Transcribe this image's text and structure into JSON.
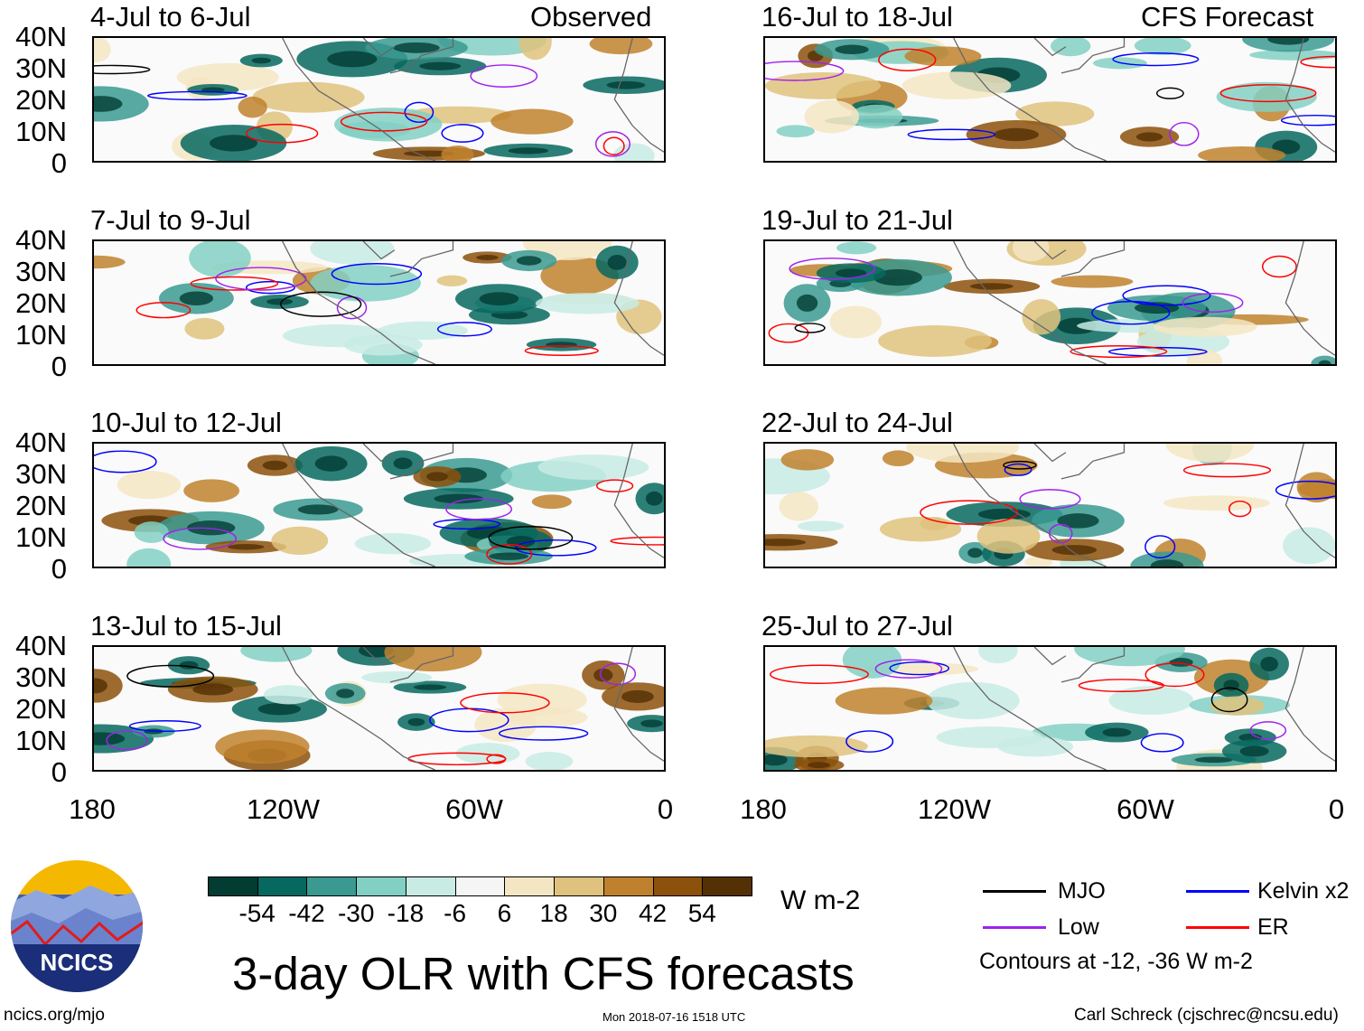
{
  "panels_left": [
    {
      "title": "4-Jul to 6-Jul",
      "subtitle": "Observed"
    },
    {
      "title": "7-Jul to 9-Jul"
    },
    {
      "title": "10-Jul to 12-Jul"
    },
    {
      "title": "13-Jul to 15-Jul"
    }
  ],
  "panels_right": [
    {
      "title": "16-Jul to 18-Jul",
      "subtitle": "CFS Forecast"
    },
    {
      "title": "19-Jul to 21-Jul"
    },
    {
      "title": "22-Jul to 24-Jul"
    },
    {
      "title": "25-Jul to 27-Jul"
    }
  ],
  "lat_labels": [
    "40N",
    "30N",
    "20N",
    "10N",
    "0"
  ],
  "lon_labels": [
    "180",
    "120W",
    "60W",
    "0"
  ],
  "colorbar": {
    "labels": [
      "-54",
      "-42",
      "-30",
      "-18",
      "-6",
      "6",
      "18",
      "30",
      "42",
      "54"
    ],
    "colors": [
      "#023c33",
      "#07685f",
      "#3a9a91",
      "#82d0c3",
      "#c8ebe4",
      "#f5f5f5",
      "#f5e6c3",
      "#dfc27d",
      "#bf812d",
      "#8c510a",
      "#543005"
    ],
    "units": "W m-2"
  },
  "title": "3-day OLR with CFS forecasts",
  "timestamp": "Mon 2018-07-16 1518 UTC",
  "legend": {
    "items": [
      {
        "label": "MJO",
        "color": "#000000"
      },
      {
        "label": "Kelvin x2",
        "color": "#0000ff"
      },
      {
        "label": "Low",
        "color": "#a020f0"
      },
      {
        "label": "ER",
        "color": "#ff0000"
      }
    ],
    "note": "Contours at -12, -36 W m-2"
  },
  "logo": {
    "text": "NCICS"
  },
  "url": "ncics.org/mjo",
  "credit": "Carl Schreck (cjschrec@ncsu.edu)"
}
